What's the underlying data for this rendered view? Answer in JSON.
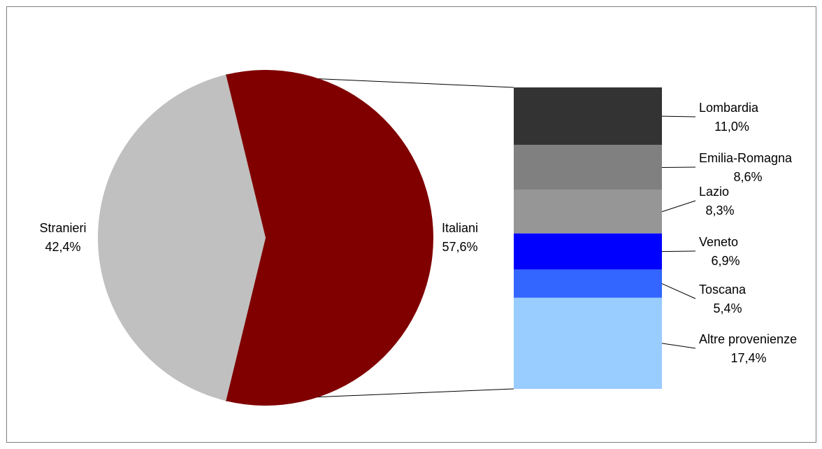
{
  "chart_data": {
    "type": "pie",
    "subtype": "bar-of-pie",
    "title": "",
    "pie": [
      {
        "label": "Italiani",
        "value_label": "57,6%",
        "value": 57.6,
        "color": "#800000"
      },
      {
        "label": "Stranieri",
        "value_label": "42,4%",
        "value": 42.4,
        "color": "#C0C0C0"
      }
    ],
    "bar": [
      {
        "label": "Lombardia",
        "value_label": "11,0%",
        "value": 11.0,
        "color": "#333333"
      },
      {
        "label": "Emilia-Romagna",
        "value_label": "8,6%",
        "value": 8.6,
        "color": "#808080"
      },
      {
        "label": "Lazio",
        "value_label": "8,3%",
        "value": 8.3,
        "color": "#969696"
      },
      {
        "label": "Veneto",
        "value_label": "6,9%",
        "value": 6.9,
        "color": "#0000FF"
      },
      {
        "label": "Toscana",
        "value_label": "5,4%",
        "value": 5.4,
        "color": "#3366FF"
      },
      {
        "label": "Altre provenienze",
        "value_label": "17,4%",
        "value": 17.4,
        "color": "#99CCFF"
      }
    ]
  }
}
